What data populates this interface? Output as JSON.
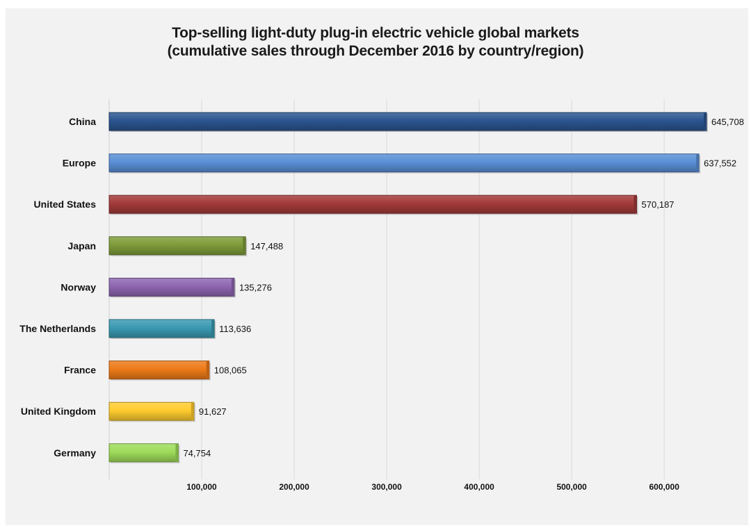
{
  "chart_data": {
    "type": "bar",
    "orientation": "horizontal",
    "title_lines": [
      "Top-selling light-duty plug-in electric vehicle global markets",
      "(cumulative sales through December 2016 by country/region)"
    ],
    "xlabel": "",
    "ylabel": "",
    "categories": [
      "China",
      "Europe",
      "United States",
      "Japan",
      "Norway",
      "The Netherlands",
      "France",
      "United Kingdom",
      "Germany"
    ],
    "values": [
      645708,
      637552,
      570187,
      147488,
      135276,
      113636,
      108065,
      91627,
      74754
    ],
    "value_labels": [
      "645,708",
      "637,552",
      "570,187",
      "147,488",
      "135,276",
      "113,636",
      "108,065",
      "91,627",
      "74,754"
    ],
    "colors": [
      "#2b5590",
      "#5a8fd6",
      "#a33a3a",
      "#7f9c3a",
      "#8e65b0",
      "#3a9ab2",
      "#ee7a18",
      "#ffcc2e",
      "#9edc5a"
    ],
    "xlim": [
      0,
      645708
    ],
    "xticks": [
      100000,
      200000,
      300000,
      400000,
      500000,
      600000
    ],
    "xtick_labels": [
      "100,000",
      "200,000",
      "300,000",
      "400,000",
      "500,000",
      "600,000"
    ],
    "grid": true,
    "legend": "none"
  }
}
